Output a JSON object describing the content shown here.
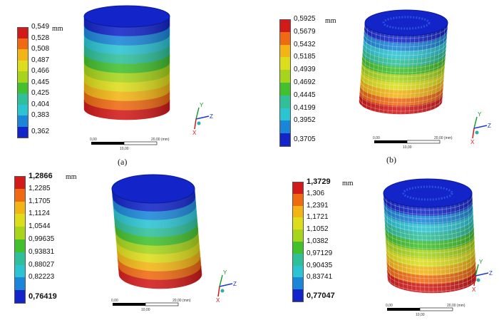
{
  "panels": [
    {
      "id": "a",
      "caption": "(a)",
      "unit": "mm",
      "legend": [
        "0,549",
        "0,528",
        "0,508",
        "0,487",
        "0,466",
        "0,445",
        "0,425",
        "0,404",
        "0,383",
        "0,362"
      ],
      "scale": {
        "left": "0,00",
        "right": "20,00 (mm)",
        "mid": "10,00"
      },
      "axis": {
        "y": "Y",
        "z": "Z",
        "x": "X"
      },
      "style": "solid"
    },
    {
      "id": "b",
      "caption": "(b)",
      "unit": "mm",
      "legend": [
        "0,5925",
        "0,5679",
        "0,5432",
        "0,5185",
        "0,4939",
        "0,4692",
        "0,4445",
        "0,4199",
        "0,3952",
        "0,3705"
      ],
      "scale": {
        "left": "0,00",
        "right": "20,00 (mm)",
        "mid": "10,00"
      },
      "axis": {
        "y": "Y",
        "z": "Z",
        "x": "X"
      },
      "style": "lattice"
    },
    {
      "id": "c",
      "caption": "",
      "unit": "mm",
      "legend": [
        "1,2866",
        "1,2285",
        "1,1705",
        "1,1124",
        "1,0544",
        "0,99635",
        "0,93831",
        "0,88027",
        "0,82223",
        "0,76419"
      ],
      "scale": {
        "left": "0,00",
        "right": "20,00 (mm)",
        "mid": "10,00"
      },
      "axis": {
        "y": "Y",
        "z": "Z",
        "x": "X"
      },
      "style": "solid"
    },
    {
      "id": "d",
      "caption": "",
      "unit": "mm",
      "legend": [
        "1,3729",
        "1,306",
        "1,2391",
        "1,1721",
        "1,1052",
        "1,0382",
        "0,97129",
        "0,90435",
        "0,83741",
        "0,77047"
      ],
      "scale": {
        "left": "0,00",
        "right": "20,00 (mm)",
        "mid": "10,00"
      },
      "axis": {
        "y": "Y",
        "z": "Z",
        "x": "X"
      },
      "style": "lattice"
    }
  ],
  "colors": [
    "#d21a1a",
    "#ef6a12",
    "#f3b515",
    "#dddd1c",
    "#a7d51b",
    "#43c02e",
    "#2fc09a",
    "#2cc3d2",
    "#1b86d8",
    "#1325c8"
  ]
}
